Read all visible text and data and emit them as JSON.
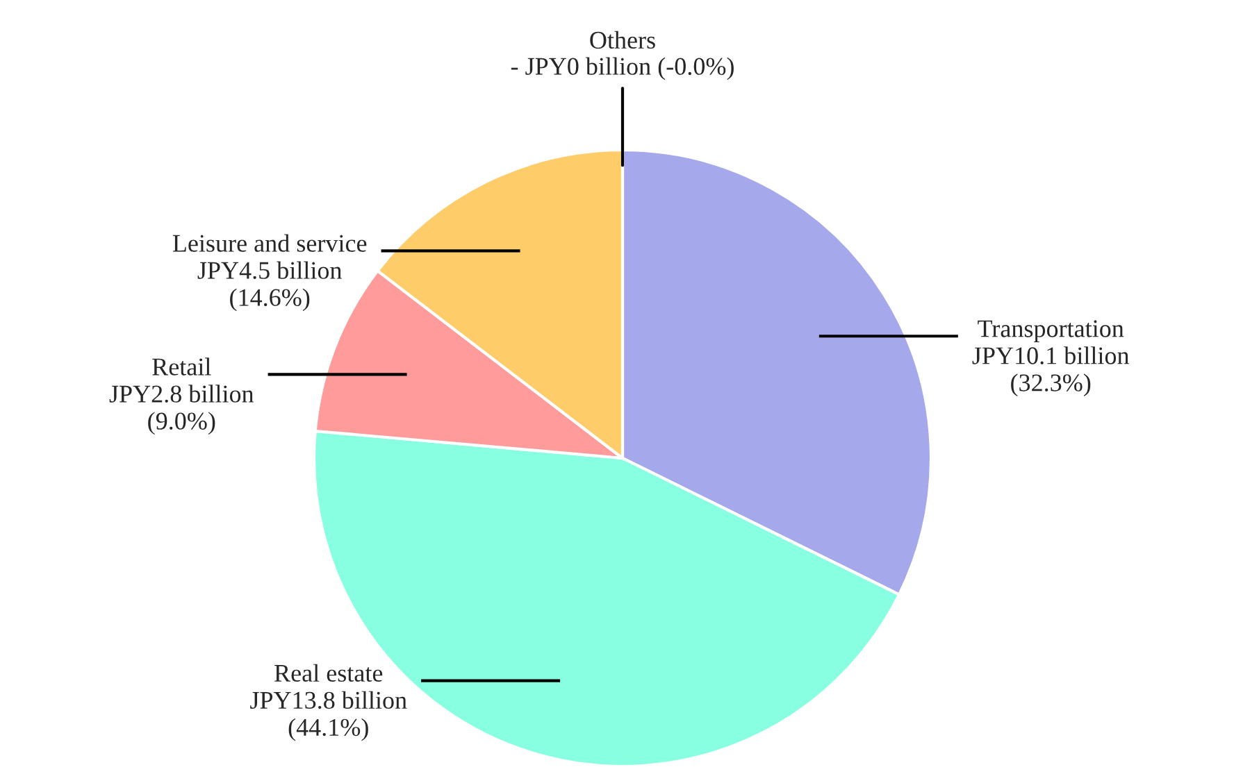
{
  "chart_data": {
    "type": "pie",
    "categories": [
      "Transportation",
      "Real estate",
      "Retail",
      "Leisure and service",
      "Others"
    ],
    "values": [
      32.3,
      44.1,
      9.0,
      14.6,
      0
    ],
    "colors": [
      "#a5a8ea",
      "#87ffe0",
      "#ff9b9b",
      "#ffcc6a",
      "#888888"
    ],
    "value_labels": [
      "JPY10.1 billion\n(32.3%)",
      "JPY13.8 billion\n(44.1%)",
      "JPY2.8 billion\n(9.0%)",
      "JPY4.5 billion\n(14.6%)",
      "- JPY0 billion (-0.0%)"
    ],
    "legend": false
  }
}
